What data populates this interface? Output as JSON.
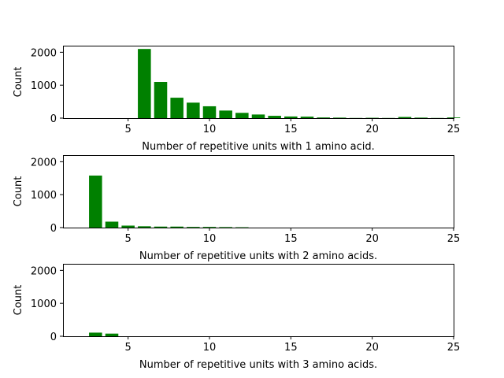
{
  "chart_data": [
    {
      "type": "bar",
      "xlabel": "Number of repetitive units with 1 amino acid.",
      "ylabel": "Count",
      "xlim": [
        1,
        25
      ],
      "ylim": [
        0,
        2200
      ],
      "xticks": [
        5,
        10,
        15,
        20,
        25
      ],
      "yticks": [
        0,
        1000,
        2000
      ],
      "bar_color": "#008000",
      "grid": false,
      "x": [
        6,
        7,
        8,
        9,
        10,
        11,
        12,
        13,
        14,
        15,
        16,
        17,
        18,
        19,
        20,
        21,
        22,
        23,
        24,
        25
      ],
      "values": [
        2100,
        1100,
        620,
        470,
        360,
        230,
        160,
        110,
        70,
        50,
        45,
        20,
        15,
        5,
        10,
        5,
        35,
        15,
        5,
        20
      ]
    },
    {
      "type": "bar",
      "xlabel": "Number of repetitive units with 2 amino acids.",
      "ylabel": "Count",
      "xlim": [
        1,
        25
      ],
      "ylim": [
        0,
        2200
      ],
      "xticks": [
        5,
        10,
        15,
        20,
        25
      ],
      "yticks": [
        0,
        1000,
        2000
      ],
      "bar_color": "#008000",
      "grid": false,
      "x": [
        3,
        4,
        5,
        6,
        7,
        8,
        9,
        10,
        11,
        12
      ],
      "values": [
        1580,
        180,
        60,
        40,
        30,
        30,
        20,
        20,
        15,
        10
      ]
    },
    {
      "type": "bar",
      "xlabel": "Number of repetitive units with 3 amino acids.",
      "ylabel": "Count",
      "xlim": [
        1,
        25
      ],
      "ylim": [
        0,
        2200
      ],
      "xticks": [
        5,
        10,
        15,
        20,
        25
      ],
      "yticks": [
        0,
        1000,
        2000
      ],
      "bar_color": "#008000",
      "grid": false,
      "x": [
        3,
        4
      ],
      "values": [
        110,
        80
      ]
    }
  ]
}
